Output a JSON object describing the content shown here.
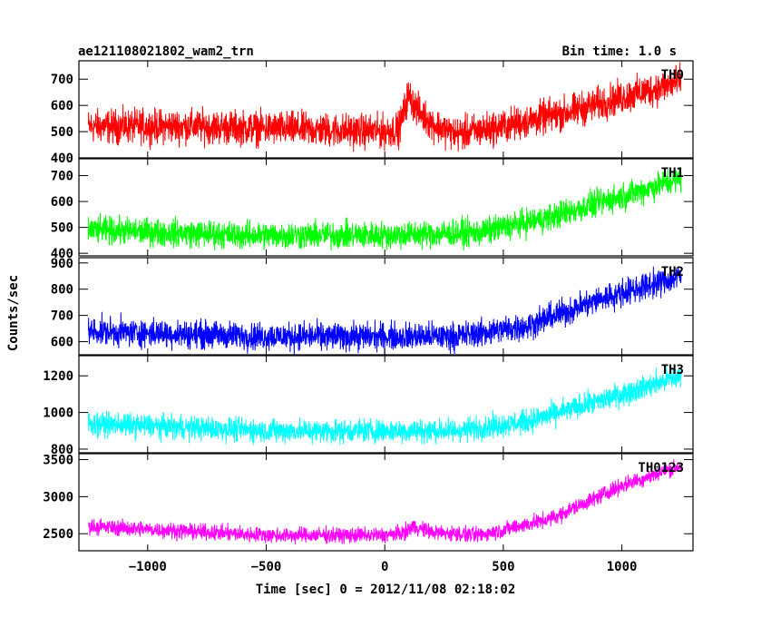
{
  "chart_data": {
    "type": "line",
    "title_left": "ae121108021802_wam2_trn",
    "title_right": "Bin time: 1.0 s",
    "xlabel": "Time [sec] 0 = 2012/11/08 02:18:02",
    "ylabel": "Counts/sec",
    "xlim": [
      -1290,
      1300
    ],
    "xticks": [
      -1000,
      -500,
      0,
      500,
      1000
    ],
    "xtick_labels": [
      "−1000",
      "−500",
      "0",
      "500",
      "1000"
    ],
    "x_start": -1250,
    "x_end": 1250,
    "panels": [
      {
        "name": "TH0",
        "color": "#ff0000",
        "ylim": [
          400,
          770
        ],
        "yticks": [
          400,
          500,
          600,
          700
        ],
        "noise": 55,
        "trend": [
          [
            -1250,
            520
          ],
          [
            -800,
            520
          ],
          [
            0,
            500
          ],
          [
            60,
            510
          ],
          [
            100,
            640
          ],
          [
            140,
            580
          ],
          [
            200,
            530
          ],
          [
            300,
            490
          ],
          [
            500,
            520
          ],
          [
            800,
            580
          ],
          [
            1000,
            630
          ],
          [
            1250,
            690
          ]
        ]
      },
      {
        "name": "TH1",
        "color": "#00ff00",
        "ylim": [
          390,
          765
        ],
        "yticks": [
          400,
          500,
          600,
          700
        ],
        "noise": 45,
        "trend": [
          [
            -1250,
            490
          ],
          [
            -600,
            470
          ],
          [
            0,
            470
          ],
          [
            400,
            480
          ],
          [
            700,
            540
          ],
          [
            1000,
            620
          ],
          [
            1250,
            690
          ]
        ]
      },
      {
        "name": "TH2",
        "color": "#0000ff",
        "ylim": [
          550,
          920
        ],
        "yticks": [
          600,
          700,
          800,
          900
        ],
        "noise": 45,
        "trend": [
          [
            -1250,
            640
          ],
          [
            -500,
            620
          ],
          [
            300,
            620
          ],
          [
            600,
            660
          ],
          [
            900,
            760
          ],
          [
            1250,
            850
          ]
        ]
      },
      {
        "name": "TH3",
        "color": "#00ffff",
        "ylim": [
          780,
          1310
        ],
        "yticks": [
          800,
          1000,
          1200
        ],
        "noise": 55,
        "trend": [
          [
            -1250,
            940
          ],
          [
            -500,
            900
          ],
          [
            300,
            900
          ],
          [
            600,
            950
          ],
          [
            900,
            1060
          ],
          [
            1250,
            1200
          ]
        ]
      },
      {
        "name": "TH0123",
        "color": "#ff00ff",
        "ylim": [
          2270,
          3580
        ],
        "yticks": [
          2500,
          3000,
          3500
        ],
        "noise": 90,
        "trend": [
          [
            -1250,
            2600
          ],
          [
            -500,
            2480
          ],
          [
            0,
            2480
          ],
          [
            80,
            2510
          ],
          [
            120,
            2600
          ],
          [
            200,
            2520
          ],
          [
            400,
            2480
          ],
          [
            700,
            2700
          ],
          [
            1000,
            3150
          ],
          [
            1250,
            3420
          ]
        ]
      }
    ]
  }
}
